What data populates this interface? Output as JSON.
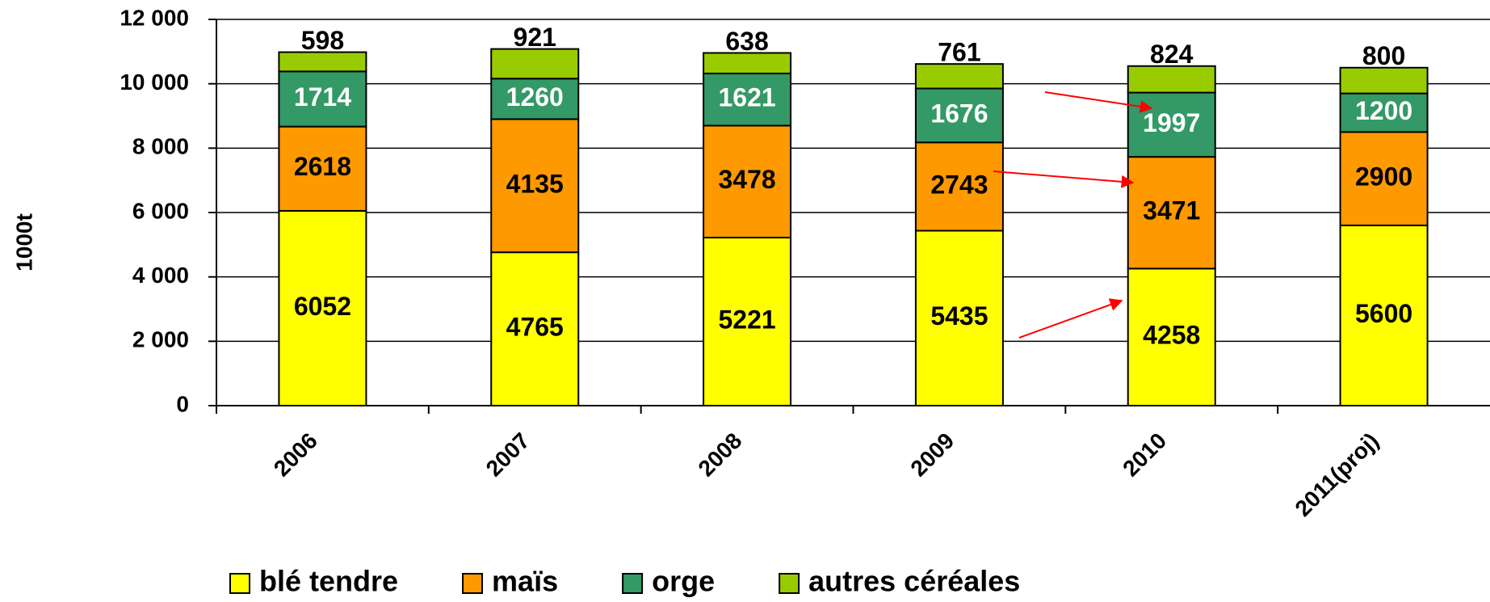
{
  "chart_data": {
    "type": "bar",
    "stacked": true,
    "y_label": "1000t",
    "categories": [
      "2006",
      "2007",
      "2008",
      "2009",
      "2010",
      "2011(proj)"
    ],
    "series": [
      {
        "name": "blé tendre",
        "color": "#ffff00",
        "values": [
          6052,
          4765,
          5221,
          5435,
          4258,
          5600
        ]
      },
      {
        "name": "maïs",
        "color": "#ff9900",
        "values": [
          2618,
          4135,
          3478,
          2743,
          3471,
          2900
        ]
      },
      {
        "name": "orge",
        "color": "#339966",
        "values": [
          1714,
          1260,
          1621,
          1676,
          1997,
          1200
        ]
      },
      {
        "name": "autres céréales",
        "color": "#99cc00",
        "values": [
          598,
          921,
          638,
          761,
          824,
          800
        ]
      }
    ],
    "ylim": [
      0,
      12000
    ],
    "yticks": [
      {
        "value": 0,
        "label": "0"
      },
      {
        "value": 2000,
        "label": "2 000"
      },
      {
        "value": 4000,
        "label": "4 000"
      },
      {
        "value": 6000,
        "label": "6 000"
      },
      {
        "value": 8000,
        "label": "8 000"
      },
      {
        "value": 10000,
        "label": "10 000"
      },
      {
        "value": 12000,
        "label": "12 000"
      }
    ],
    "grid": true
  }
}
